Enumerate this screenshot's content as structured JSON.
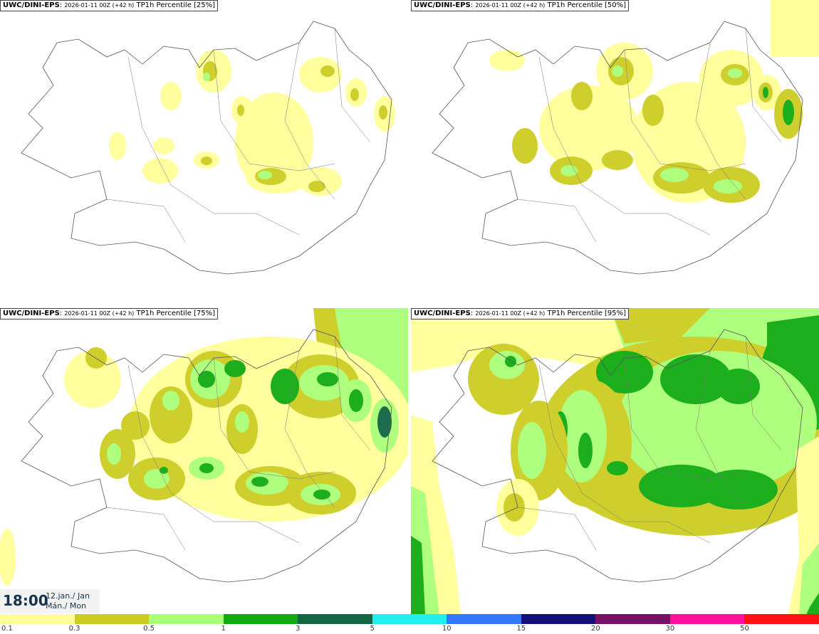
{
  "legend_colors": {
    "c01": "#ffff99",
    "c03": "#cccc22",
    "c05": "#aaff77",
    "c1": "#11aa11",
    "c3": "#116644",
    "c5": "#22eeee",
    "c10": "#3377ff",
    "c15": "#111177",
    "c20": "#771166",
    "c30": "#ff1199",
    "c50": "#ff1111"
  },
  "panels": [
    {
      "model": "UWC/DINI-EPS",
      "run": "2026-01-11 00Z (+42 h)",
      "field": "TP1h Percentile [25%]"
    },
    {
      "model": "UWC/DINI-EPS",
      "run": "2026-01-11 00Z (+42 h)",
      "field": "TP1h Percentile [50%]"
    },
    {
      "model": "UWC/DINI-EPS",
      "run": "2026-01-11 00Z (+42 h)",
      "field": "TP1h Percentile [75%]"
    },
    {
      "model": "UWC/DINI-EPS",
      "run": "2026-01-11 00Z (+42 h)",
      "field": "TP1h Percentile [95%]"
    }
  ],
  "valid": {
    "time": "18:00",
    "date_line1": "12.jan./ Jan",
    "date_line2": "Mán./ Mon"
  },
  "legend": {
    "colors": [
      "#ffff99",
      "#cccc22",
      "#aaff77",
      "#11aa11",
      "#116644",
      "#22eeee",
      "#3377ff",
      "#111177",
      "#771166",
      "#ff1199",
      "#ff1111"
    ],
    "ticks": [
      "0.1",
      "0.3",
      "0.5",
      "1",
      "3",
      "5",
      "10",
      "15",
      "20",
      "30",
      "50"
    ]
  }
}
